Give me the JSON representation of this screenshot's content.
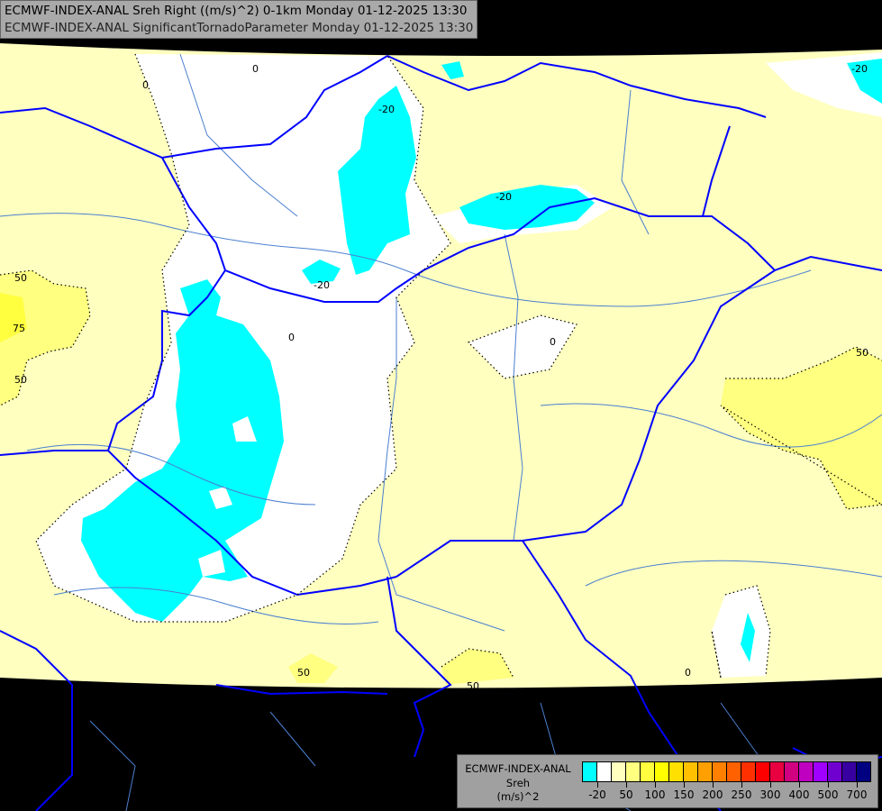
{
  "header": {
    "line1": "ECMWF-INDEX-ANAL Sreh Right ((m/s)^2) 0-1km Monday 01-12-2025 13:30",
    "line2": "ECMWF-INDEX-ANAL SignificantTornadoParameter Monday 01-12-2025 13:30"
  },
  "legend": {
    "model": "ECMWF-INDEX-ANAL",
    "variable": "Sreh",
    "unit": "(m/s)^2",
    "colors": [
      "#00ffff",
      "#ffffff",
      "#ffffc0",
      "#ffff80",
      "#ffff40",
      "#ffff00",
      "#ffe000",
      "#ffc000",
      "#ffa000",
      "#ff8000",
      "#ff6000",
      "#ff3000",
      "#ff0000",
      "#e80040",
      "#d00080",
      "#c000c0",
      "#a000ff",
      "#7000d0",
      "#3800a0",
      "#000080"
    ],
    "ticks": [
      "-20",
      "50",
      "100",
      "150",
      "200",
      "250",
      "300",
      "400",
      "500",
      "700"
    ]
  },
  "map": {
    "fill_colors": {
      "below_minus20": "#00ffff",
      "neutral": "#ffffff",
      "low": "#ffffc0",
      "mid": "#ffff80",
      "high": "#ffff40",
      "no_data": "#000000"
    },
    "border_color": "#0000ff",
    "river_color": "#4a7fd0",
    "contour_labels": [
      "0",
      "0",
      "-20",
      "-20",
      "-20",
      "-20",
      "50",
      "75",
      "50",
      "0",
      "0",
      "50",
      "50",
      "50",
      "0"
    ]
  }
}
